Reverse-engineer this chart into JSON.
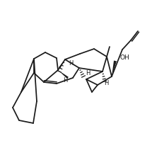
{
  "bg": "#ffffff",
  "lc": "#1a1a1a",
  "lw": 1.25,
  "figsize": [
    2.15,
    2.02
  ],
  "dpi": 100,
  "xlim": [
    0,
    215
  ],
  "ylim": [
    0,
    202
  ]
}
